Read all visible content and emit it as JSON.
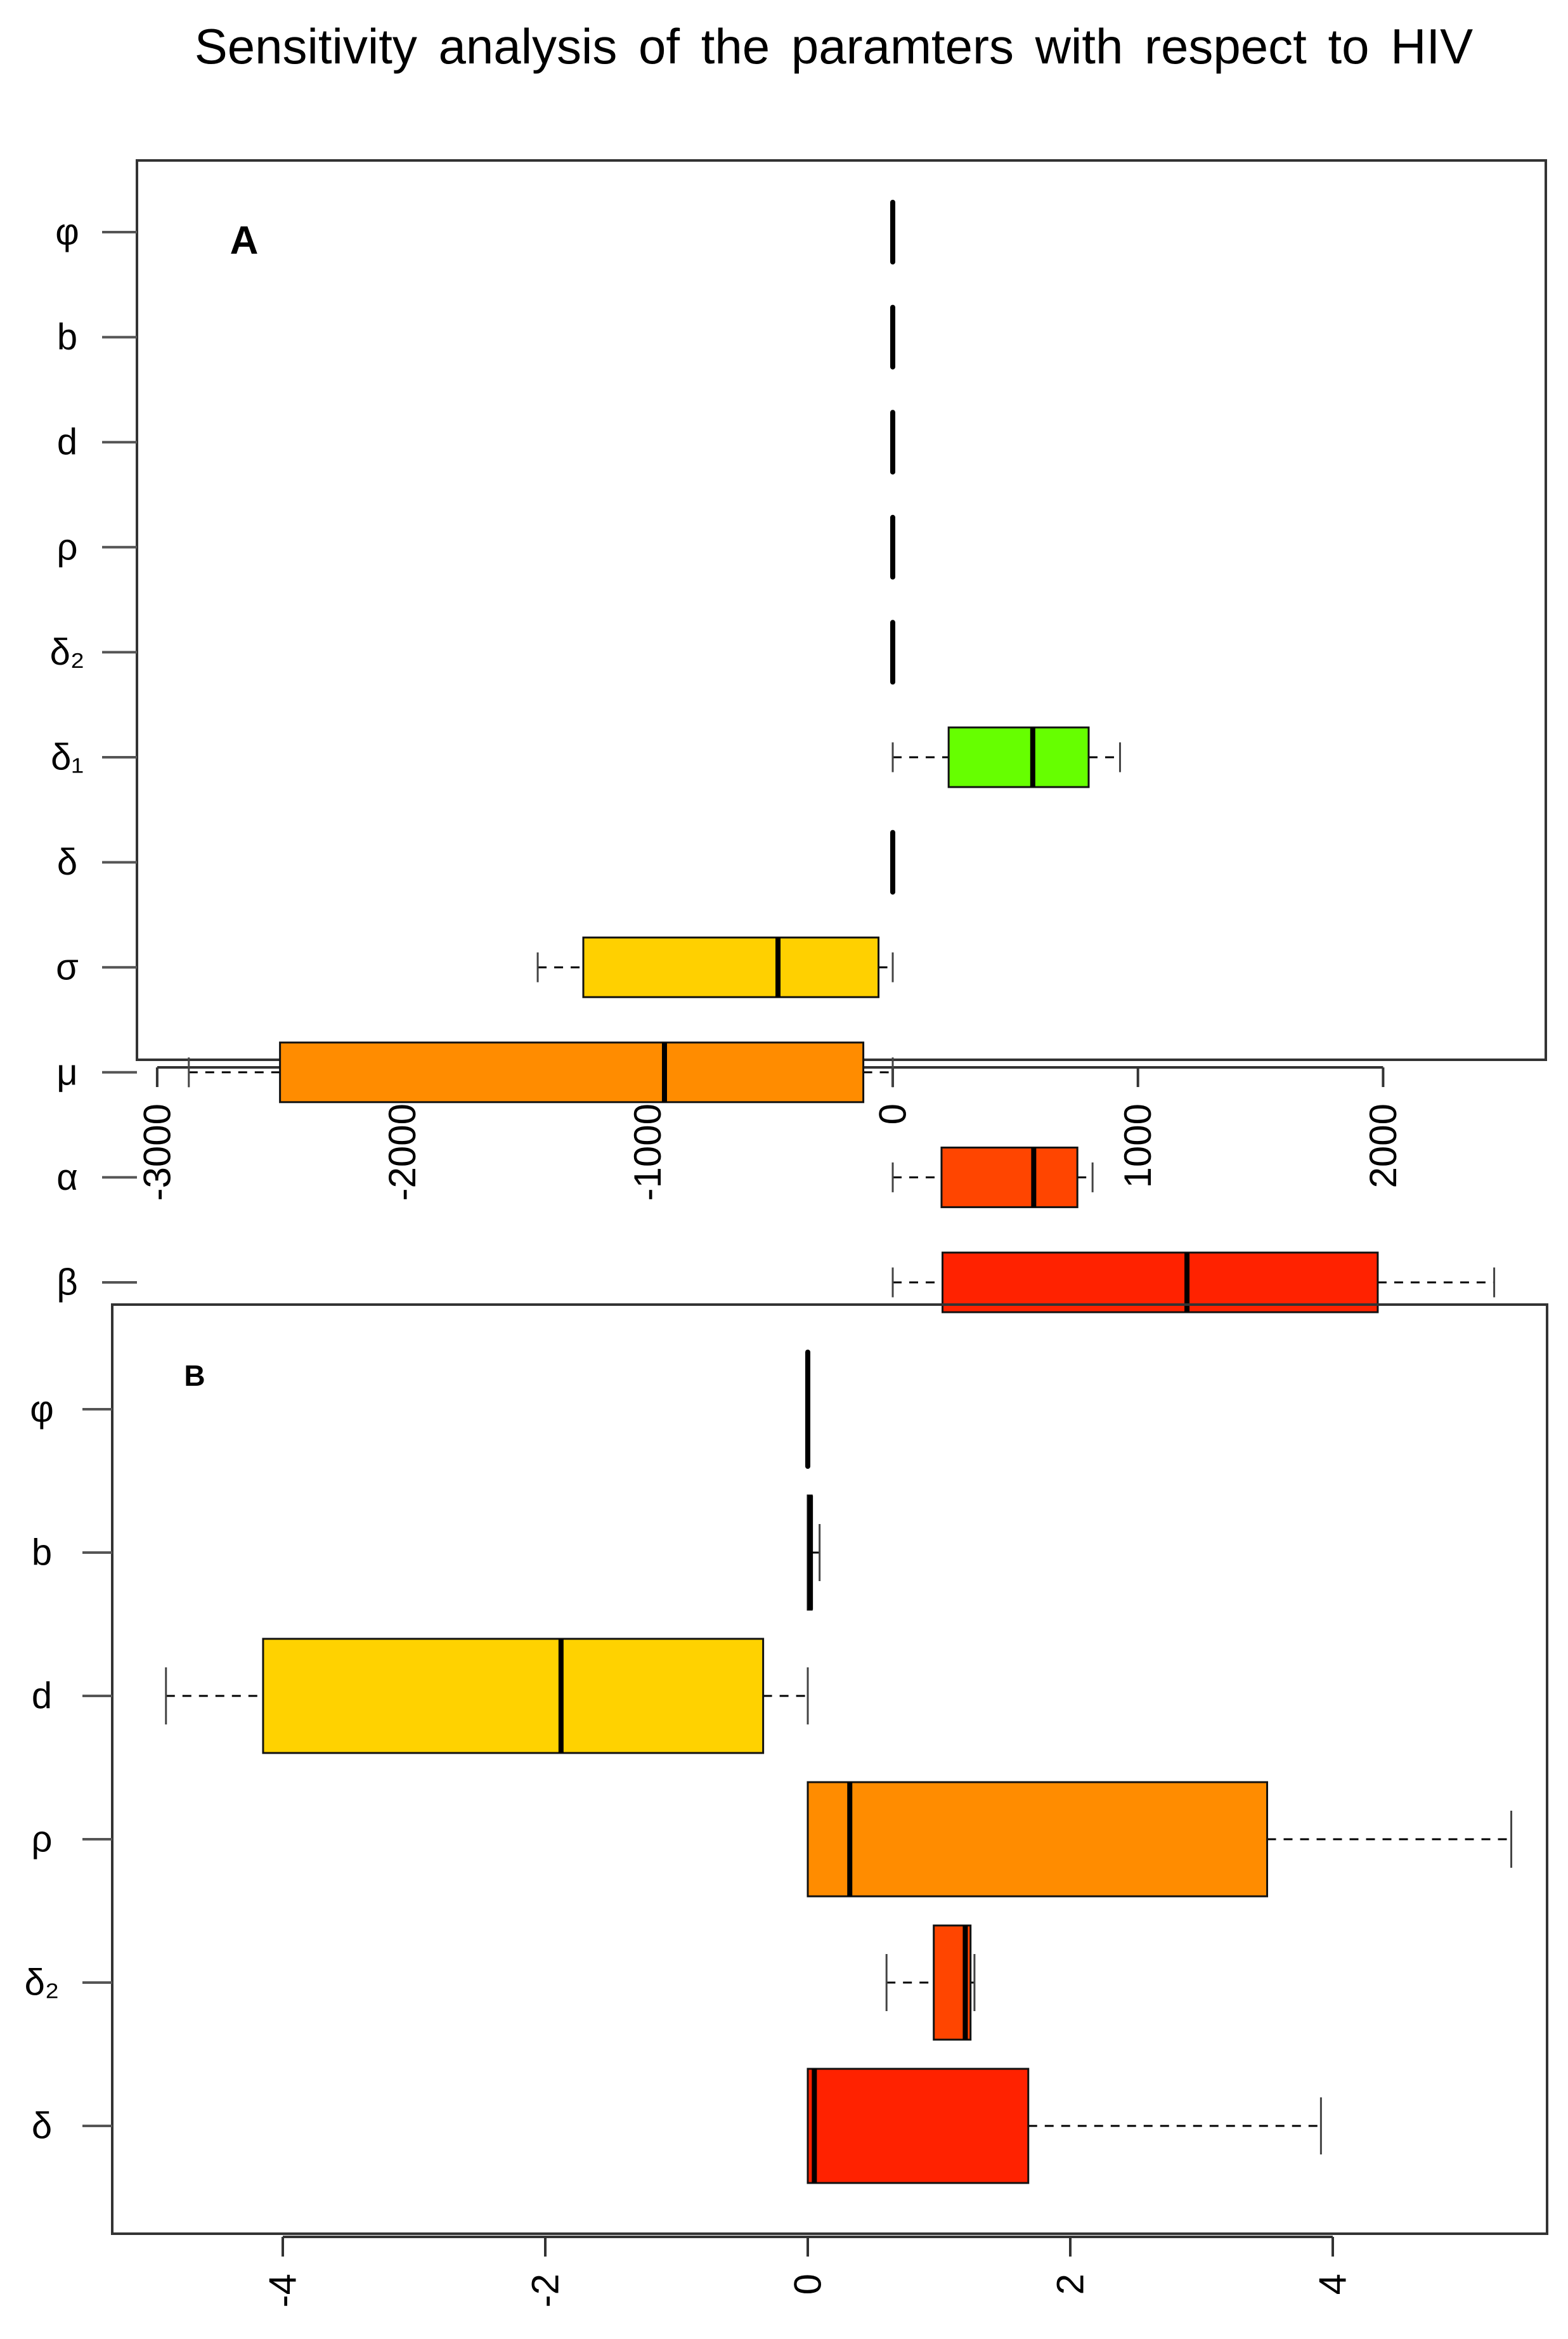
{
  "chart_data": [
    {
      "type": "boxplot-horizontal",
      "title": "Sensitivity analysis of the paramters with respect to HIV",
      "panel_label": "A",
      "xlim": [
        -3100,
        2600
      ],
      "xticks": [
        -3000,
        -2000,
        -1000,
        0,
        1000,
        2000
      ],
      "xtick_labels": [
        "-3000",
        "-2000",
        "-1000",
        "0",
        "1000",
        "2000"
      ],
      "categories": [
        "φ",
        "b",
        "d",
        "ρ",
        "δ₂",
        "δ₁",
        "δ",
        "σ",
        "μ",
        "α",
        "β"
      ],
      "boxes": [
        {
          "lo": 0,
          "q1": 0,
          "med": 0,
          "q3": 0,
          "hi": 0,
          "color": "#000000"
        },
        {
          "lo": 0,
          "q1": 0,
          "med": 0,
          "q3": 0,
          "hi": 0,
          "color": "#000000"
        },
        {
          "lo": 0,
          "q1": 0,
          "med": 0,
          "q3": 0,
          "hi": 0,
          "color": "#000000"
        },
        {
          "lo": 0,
          "q1": 0,
          "med": 0,
          "q3": 0,
          "hi": 0,
          "color": "#000000"
        },
        {
          "lo": 0,
          "q1": 0,
          "med": 0,
          "q3": 0,
          "hi": 0,
          "color": "#000000"
        },
        {
          "lo": 0,
          "q1": 228,
          "med": 571,
          "q3": 799,
          "hi": 927,
          "color": "#66ff00"
        },
        {
          "lo": 0,
          "q1": 0,
          "med": 0,
          "q3": 0,
          "hi": 0,
          "color": "#000000"
        },
        {
          "lo": -1448,
          "q1": -1262,
          "med": -468,
          "q3": -58,
          "hi": 0,
          "color": "#ffd000"
        },
        {
          "lo": -2871,
          "q1": -2499,
          "med": -931,
          "q3": -120,
          "hi": 0,
          "color": "#ff8c00"
        },
        {
          "lo": 0,
          "q1": 199,
          "med": 575,
          "q3": 753,
          "hi": 815,
          "color": "#ff4500"
        },
        {
          "lo": 0,
          "q1": 203,
          "med": 1200,
          "q3": 1978,
          "hi": 2453,
          "color": "#ff2200"
        }
      ]
    },
    {
      "type": "boxplot-horizontal",
      "panel_label": "B",
      "xlim": [
        -5.2,
        5.7
      ],
      "xticks": [
        -4,
        -2,
        0,
        2,
        4
      ],
      "xtick_labels": [
        "-4",
        "-2",
        "0",
        "2",
        "4"
      ],
      "categories": [
        "φ",
        "b",
        "d",
        "ρ",
        "δ₂",
        "δ"
      ],
      "boxes": [
        {
          "lo": 0,
          "q1": 0,
          "med": 0,
          "q3": 0,
          "hi": 0,
          "color": "#000000"
        },
        {
          "lo": 0,
          "q1": 0,
          "med": 0.02,
          "q3": 0.03,
          "hi": 0.09,
          "color": "#b5b000"
        },
        {
          "lo": -4.89,
          "q1": -4.15,
          "med": -1.88,
          "q3": -0.34,
          "hi": 0,
          "color": "#ffd200"
        },
        {
          "lo": 0,
          "q1": 0,
          "med": 0.32,
          "q3": 3.5,
          "hi": 5.36,
          "color": "#ff8c00"
        },
        {
          "lo": 0.6,
          "q1": 0.96,
          "med": 1.2,
          "q3": 1.24,
          "hi": 1.27,
          "color": "#ff4500"
        },
        {
          "lo": 0,
          "q1": 0,
          "med": 0.05,
          "q3": 1.68,
          "hi": 3.91,
          "color": "#ff2200"
        }
      ]
    }
  ]
}
